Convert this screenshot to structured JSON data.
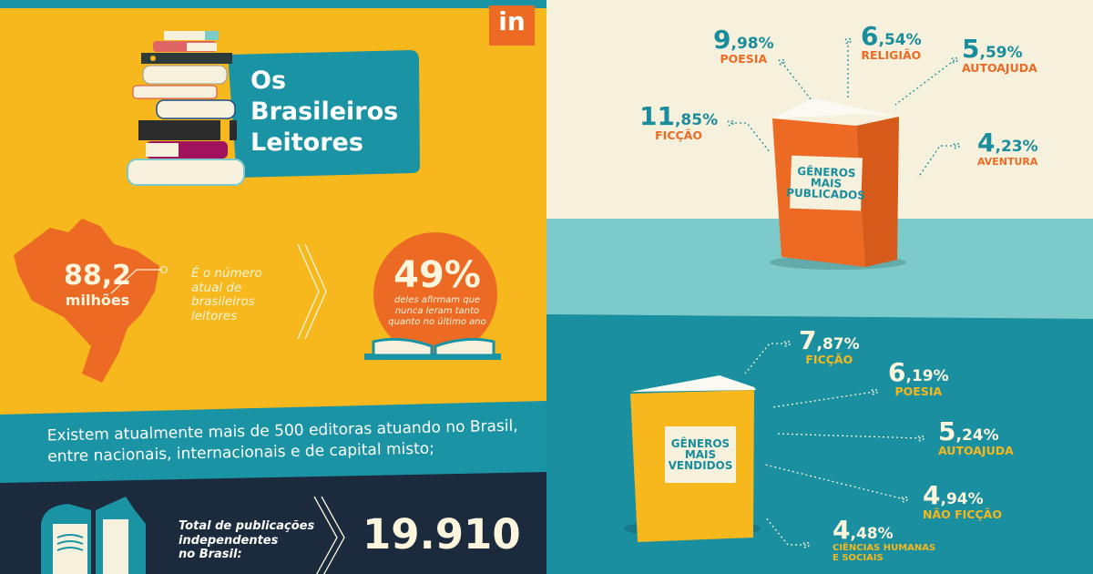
{
  "header": {
    "title_lines": [
      "Os",
      "Brasileiros",
      "Leitores"
    ],
    "logo": "in"
  },
  "readers": {
    "value": "88,2",
    "unit": "milhões",
    "description_lines": [
      "É o número",
      "atual de",
      "brasileiros",
      "leitores"
    ]
  },
  "not_read": {
    "value": "49%",
    "description_lines": [
      "deles afirmam que",
      "nunca leram tanto",
      "quanto no último ano"
    ]
  },
  "publishers": {
    "lines": [
      "Existem atualmente mais de 500 editoras atuando no Brasil,",
      "entre nacionais, internacionais e de capital misto;"
    ]
  },
  "independent": {
    "label_lines": [
      "Total de publicações",
      "independentes",
      "no Brasil:"
    ],
    "value": "19.910"
  },
  "published": {
    "book_label": [
      "GÊNEROS",
      "MAIS",
      "PUBLICADOS"
    ],
    "genres": [
      {
        "value": "11,85%",
        "label": "FICÇÃO"
      },
      {
        "value": "9,98%",
        "label": "POESIA"
      },
      {
        "value": "6,54%",
        "label": "RELIGIÃO"
      },
      {
        "value": "5,59%",
        "label": "AUTOAJUDA"
      },
      {
        "value": "4,23%",
        "label": "AVENTURA"
      }
    ]
  },
  "sold": {
    "book_label": [
      "GÊNEROS",
      "MAIS",
      "VENDIDOS"
    ],
    "genres": [
      {
        "value": "7,87%",
        "label": "FICÇÃO"
      },
      {
        "value": "6,19%",
        "label": "POESIA"
      },
      {
        "value": "5,24%",
        "label": "AUTOAJUDA"
      },
      {
        "value": "4,94%",
        "label": "NÃO FICÇÃO"
      },
      {
        "value": "4,48%",
        "label": "CIÊNCIAS HUMANAS",
        "label2": "E SOCIAIS"
      }
    ]
  },
  "colors": {
    "yellow": "#f6b81c",
    "orange": "#ec6a24",
    "teal": "#1a93a4",
    "navy": "#1b2b3d",
    "cream": "#f5f1dc",
    "light_teal": "#7ccaca"
  }
}
